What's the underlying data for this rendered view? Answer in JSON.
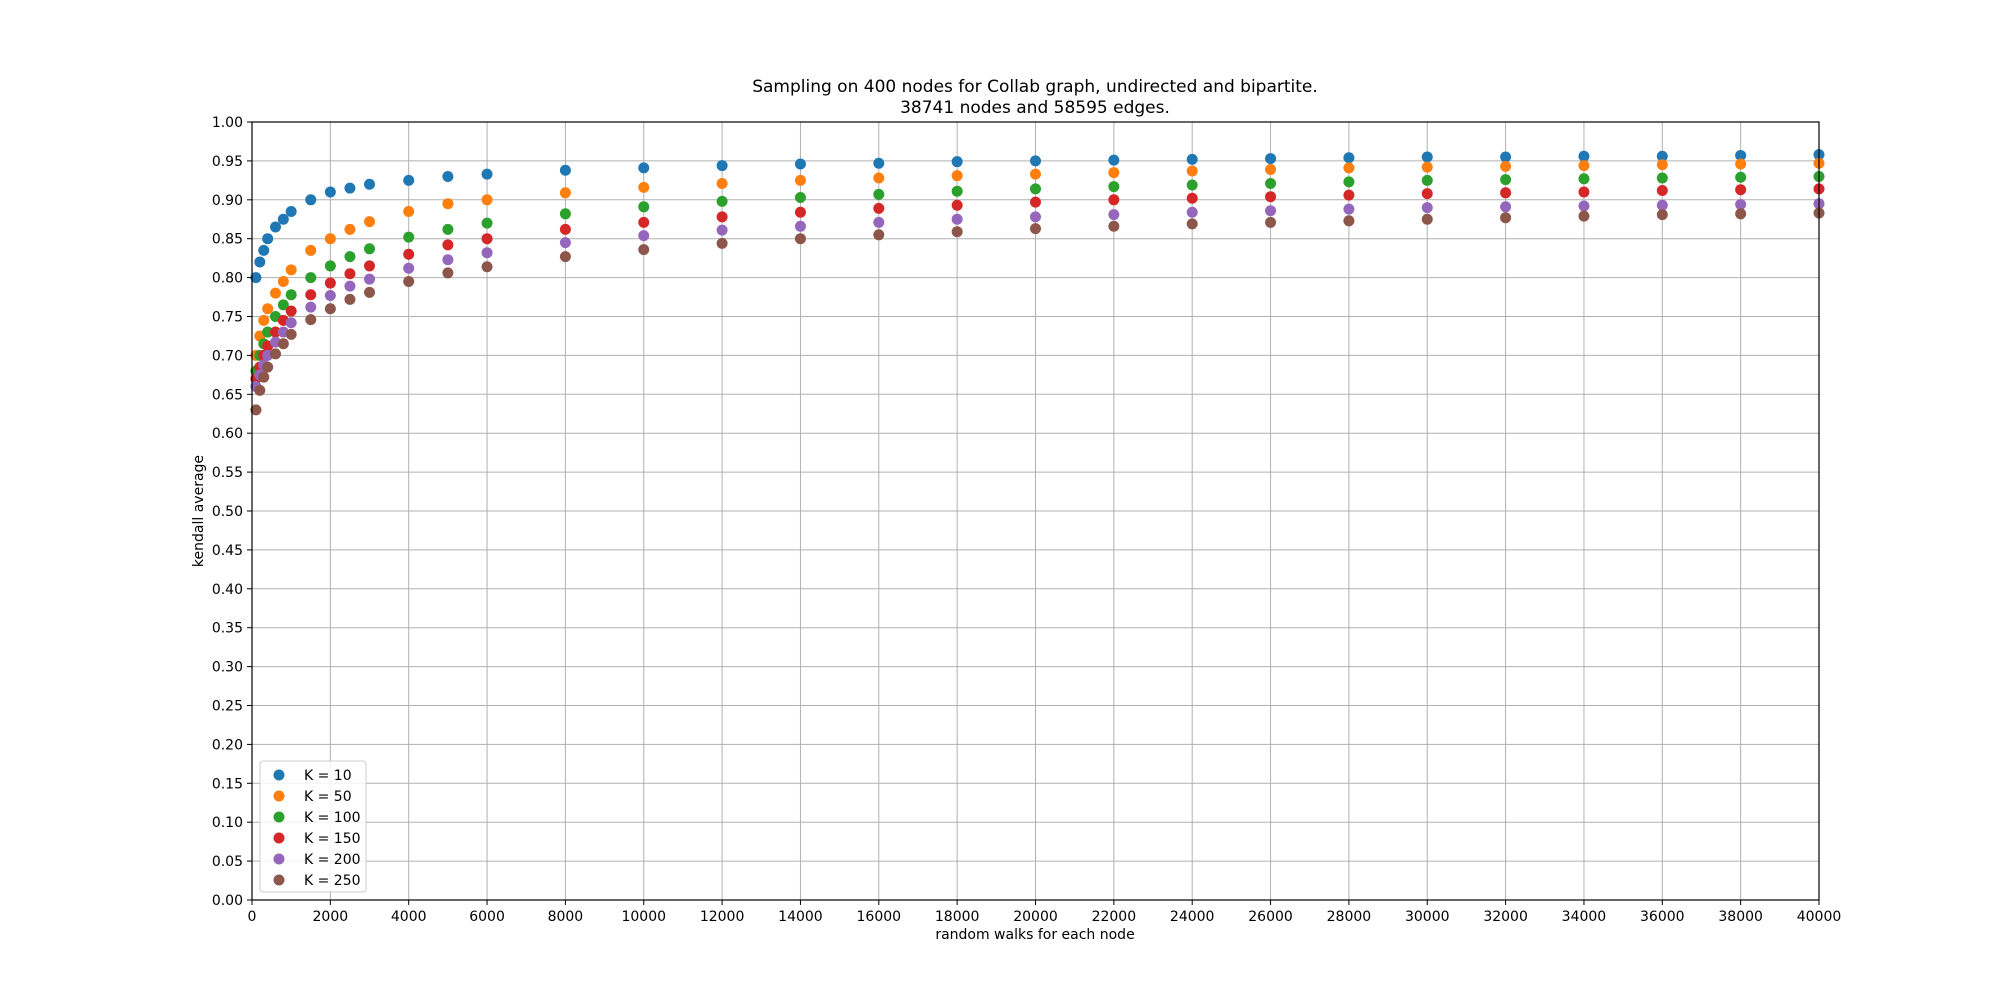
{
  "chart_data": {
    "type": "scatter",
    "title": "Sampling on 400 nodes for Collab graph, undirected and bipartite.",
    "subtitle": "38741 nodes and 58595 edges.",
    "xlabel": "random walks for each node",
    "ylabel": "kendall average",
    "xlim": [
      0,
      40000
    ],
    "ylim": [
      0,
      1
    ],
    "xticks": [
      "0",
      "2000",
      "4000",
      "6000",
      "8000",
      "10000",
      "12000",
      "14000",
      "16000",
      "18000",
      "20000",
      "22000",
      "24000",
      "26000",
      "28000",
      "30000",
      "32000",
      "34000",
      "36000",
      "38000",
      "40000"
    ],
    "yticks": [
      "0.00",
      "0.05",
      "0.10",
      "0.15",
      "0.20",
      "0.25",
      "0.30",
      "0.35",
      "0.40",
      "0.45",
      "0.50",
      "0.55",
      "0.60",
      "0.65",
      "0.70",
      "0.75",
      "0.80",
      "0.85",
      "0.90",
      "0.95",
      "1.00"
    ],
    "grid": true,
    "legend_position": "lower-left",
    "series": [
      {
        "name": "K = 10",
        "color": "#1f77b4",
        "x": [
          100,
          200,
          300,
          400,
          600,
          800,
          1000,
          1500,
          2000,
          2500,
          3000,
          4000,
          5000,
          6000,
          8000,
          10000,
          12000,
          14000,
          16000,
          18000,
          20000,
          22000,
          24000,
          26000,
          28000,
          30000,
          32000,
          34000,
          36000,
          38000,
          40000
        ],
        "values": [
          0.8,
          0.82,
          0.835,
          0.85,
          0.865,
          0.875,
          0.885,
          0.9,
          0.91,
          0.915,
          0.92,
          0.925,
          0.93,
          0.933,
          0.938,
          0.941,
          0.944,
          0.946,
          0.947,
          0.949,
          0.95,
          0.951,
          0.952,
          0.953,
          0.954,
          0.955,
          0.955,
          0.956,
          0.956,
          0.957,
          0.958
        ]
      },
      {
        "name": "K = 50",
        "color": "#ff7f0e",
        "x": [
          100,
          200,
          300,
          400,
          600,
          800,
          1000,
          1500,
          2000,
          2500,
          3000,
          4000,
          5000,
          6000,
          8000,
          10000,
          12000,
          14000,
          16000,
          18000,
          20000,
          22000,
          24000,
          26000,
          28000,
          30000,
          32000,
          34000,
          36000,
          38000,
          40000
        ],
        "values": [
          0.7,
          0.725,
          0.745,
          0.76,
          0.78,
          0.795,
          0.81,
          0.835,
          0.85,
          0.862,
          0.872,
          0.885,
          0.895,
          0.9,
          0.909,
          0.916,
          0.921,
          0.925,
          0.928,
          0.931,
          0.933,
          0.935,
          0.937,
          0.939,
          0.941,
          0.942,
          0.943,
          0.944,
          0.945,
          0.946,
          0.947
        ]
      },
      {
        "name": "K = 100",
        "color": "#2ca02c",
        "x": [
          100,
          200,
          300,
          400,
          600,
          800,
          1000,
          1500,
          2000,
          2500,
          3000,
          4000,
          5000,
          6000,
          8000,
          10000,
          12000,
          14000,
          16000,
          18000,
          20000,
          22000,
          24000,
          26000,
          28000,
          30000,
          32000,
          34000,
          36000,
          38000,
          40000
        ],
        "values": [
          0.68,
          0.7,
          0.715,
          0.73,
          0.75,
          0.765,
          0.778,
          0.8,
          0.815,
          0.827,
          0.837,
          0.852,
          0.862,
          0.87,
          0.882,
          0.891,
          0.898,
          0.903,
          0.907,
          0.911,
          0.914,
          0.917,
          0.919,
          0.921,
          0.923,
          0.925,
          0.926,
          0.927,
          0.928,
          0.929,
          0.93
        ]
      },
      {
        "name": "K = 150",
        "color": "#d62728",
        "x": [
          100,
          200,
          300,
          400,
          600,
          800,
          1000,
          1500,
          2000,
          2500,
          3000,
          4000,
          5000,
          6000,
          8000,
          10000,
          12000,
          14000,
          16000,
          18000,
          20000,
          22000,
          24000,
          26000,
          28000,
          30000,
          32000,
          34000,
          36000,
          38000,
          40000
        ],
        "values": [
          0.67,
          0.685,
          0.7,
          0.712,
          0.73,
          0.745,
          0.757,
          0.778,
          0.793,
          0.805,
          0.815,
          0.83,
          0.842,
          0.85,
          0.862,
          0.871,
          0.878,
          0.884,
          0.889,
          0.893,
          0.897,
          0.9,
          0.902,
          0.904,
          0.906,
          0.908,
          0.909,
          0.91,
          0.912,
          0.913,
          0.914
        ]
      },
      {
        "name": "K = 200",
        "color": "#9467bd",
        "x": [
          100,
          200,
          300,
          400,
          600,
          800,
          1000,
          1500,
          2000,
          2500,
          3000,
          4000,
          5000,
          6000,
          8000,
          10000,
          12000,
          14000,
          16000,
          18000,
          20000,
          22000,
          24000,
          26000,
          28000,
          30000,
          32000,
          34000,
          36000,
          38000,
          40000
        ],
        "values": [
          0.66,
          0.675,
          0.688,
          0.7,
          0.717,
          0.73,
          0.742,
          0.762,
          0.777,
          0.789,
          0.798,
          0.812,
          0.823,
          0.832,
          0.845,
          0.854,
          0.861,
          0.866,
          0.871,
          0.875,
          0.878,
          0.881,
          0.884,
          0.886,
          0.888,
          0.89,
          0.891,
          0.892,
          0.893,
          0.894,
          0.895
        ]
      },
      {
        "name": "K = 250",
        "color": "#8c564b",
        "x": [
          100,
          200,
          300,
          400,
          600,
          800,
          1000,
          1500,
          2000,
          2500,
          3000,
          4000,
          5000,
          6000,
          8000,
          10000,
          12000,
          14000,
          16000,
          18000,
          20000,
          22000,
          24000,
          26000,
          28000,
          30000,
          32000,
          34000,
          36000,
          38000,
          40000
        ],
        "values": [
          0.63,
          0.655,
          0.672,
          0.685,
          0.702,
          0.715,
          0.727,
          0.746,
          0.76,
          0.772,
          0.781,
          0.795,
          0.806,
          0.814,
          0.827,
          0.836,
          0.844,
          0.85,
          0.855,
          0.859,
          0.863,
          0.866,
          0.869,
          0.871,
          0.873,
          0.875,
          0.877,
          0.879,
          0.881,
          0.882,
          0.883
        ]
      }
    ]
  }
}
